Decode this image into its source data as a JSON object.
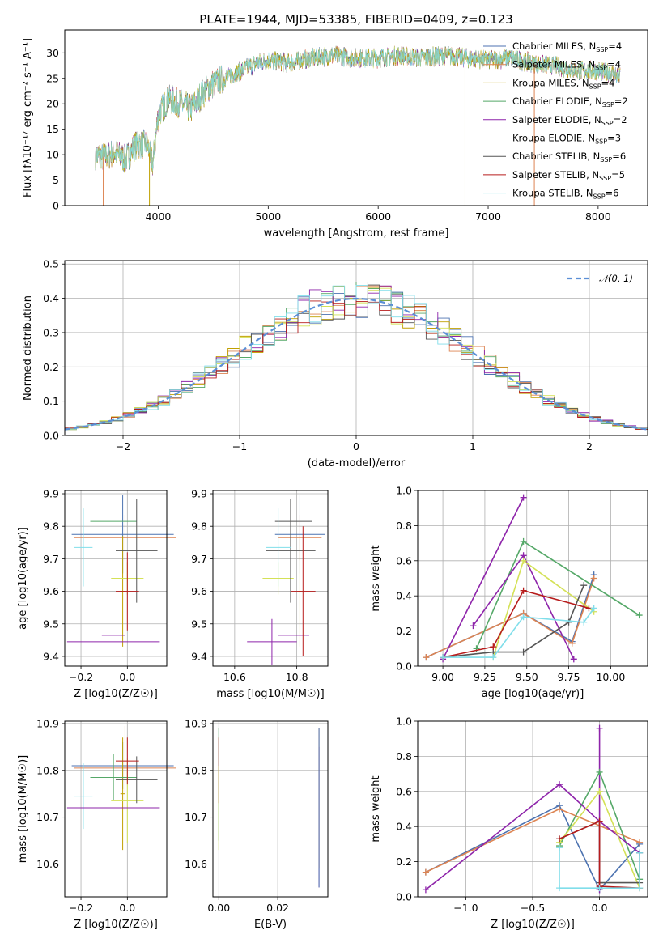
{
  "figure": {
    "title": "PLATE=1944, MJD=53385, FIBERID=0409, z=0.123"
  },
  "models": [
    {
      "name": "Chabrier MILES",
      "n": "4",
      "color": "#4c72b0"
    },
    {
      "name": "Salpeter MILES",
      "n": "4",
      "color": "#dd8452"
    },
    {
      "name": "Kroupa MILES",
      "n": "4",
      "color": "#c0a000"
    },
    {
      "name": "Chabrier ELODIE",
      "n": "2",
      "color": "#55a868"
    },
    {
      "name": "Salpeter ELODIE",
      "n": "2",
      "color": "#8e24aa"
    },
    {
      "name": "Kroupa ELODIE",
      "n": "3",
      "color": "#d4e157"
    },
    {
      "name": "Chabrier STELIB",
      "n": "6",
      "color": "#555555"
    },
    {
      "name": "Salpeter STELIB",
      "n": "5",
      "color": "#b71c1c"
    },
    {
      "name": "Kroupa STELIB",
      "n": "6",
      "color": "#80deea"
    }
  ],
  "chart_data": [
    {
      "id": "spectrum",
      "type": "line",
      "xlabel": "wavelength [Angstrom, rest frame]",
      "ylabel": "Flux [fλ10⁻¹⁷ erg cm⁻² s⁻¹ A⁻¹]",
      "xlim": [
        3150,
        8450
      ],
      "ylim": [
        0,
        34.5
      ],
      "xticks": [
        4000,
        5000,
        6000,
        7000,
        8000
      ],
      "yticks": [
        0,
        5,
        10,
        15,
        20,
        25,
        30
      ],
      "x": [
        3430,
        3500,
        3600,
        3700,
        3800,
        3900,
        3950,
        4000,
        4100,
        4200,
        4300,
        4400,
        4500,
        4600,
        4700,
        4800,
        4900,
        5000,
        5200,
        5400,
        5600,
        5800,
        6000,
        6200,
        6400,
        6600,
        6800,
        7000,
        7200,
        7400,
        7600,
        7800,
        8000,
        8200
      ],
      "y": [
        10,
        9.5,
        10.5,
        9,
        12,
        12,
        8,
        18,
        21,
        20,
        19,
        22,
        24,
        25,
        26,
        27,
        28,
        28.5,
        28,
        29,
        29.5,
        29,
        29,
        29.5,
        29,
        29.5,
        29,
        28.5,
        29,
        28,
        27.5,
        26.5,
        26.5,
        25.5
      ],
      "grid": false,
      "legend": "upper right"
    },
    {
      "id": "residuals",
      "type": "line",
      "xlabel": "(data-model)/error",
      "ylabel": "Normed distribution",
      "xlim": [
        -2.5,
        2.5
      ],
      "ylim": [
        0,
        0.51
      ],
      "xticks": [
        -2,
        -1,
        0,
        1,
        2
      ],
      "yticks": [
        0.0,
        0.1,
        0.2,
        0.3,
        0.4,
        0.5
      ],
      "normal_label": "𝒩(0, 1)",
      "grid": true,
      "legend": "upper right"
    },
    {
      "id": "age-vs-Z",
      "type": "scatter",
      "xlabel": "Z [log10(Z/Z☉)]",
      "ylabel": "age [log10(age/yr)]",
      "xlim": [
        -0.27,
        0.17
      ],
      "ylim": [
        9.37,
        9.91
      ],
      "xticks": [
        -0.2,
        0.0
      ],
      "yticks": [
        9.4,
        9.5,
        9.6,
        9.7,
        9.8,
        9.9
      ],
      "points": [
        {
          "x": -0.02,
          "y": 9.775,
          "xerr": 0.22,
          "yerr": 0.12
        },
        {
          "x": -0.01,
          "y": 9.765,
          "xerr": 0.22,
          "yerr": 0.07
        },
        {
          "x": -0.02,
          "y": 9.6,
          "xerr": 0.01,
          "yerr": 0.17
        },
        {
          "x": -0.06,
          "y": 9.815,
          "xerr": 0.1,
          "yerr": 0.0
        },
        {
          "x": -0.06,
          "y": 9.465,
          "xerr": 0.05,
          "yerr": 0.0
        },
        {
          "x": 0.0,
          "y": 9.64,
          "xerr": 0.07,
          "yerr": 0.05
        },
        {
          "x": 0.04,
          "y": 9.725,
          "xerr": 0.09,
          "yerr": 0.16
        },
        {
          "x": 0.0,
          "y": 9.6,
          "xerr": 0.05,
          "yerr": 0.12
        },
        {
          "x": -0.19,
          "y": 9.735,
          "xerr": 0.04,
          "yerr": 0.12
        },
        {
          "x": -0.06,
          "y": 9.445,
          "xerr": 0.2,
          "yerr": 0.0
        }
      ]
    },
    {
      "id": "age-vs-mass",
      "type": "scatter",
      "xlabel": "mass [log10(M/M☉)]",
      "ylabel": "",
      "xlim": [
        10.53,
        10.9
      ],
      "ylim": [
        9.37,
        9.91
      ],
      "xticks": [
        10.6,
        10.8
      ],
      "yticks": [
        9.4,
        9.5,
        9.6,
        9.7,
        9.8,
        9.9
      ],
      "points": [
        {
          "x": 10.81,
          "y": 9.775,
          "xerr": 0.08,
          "yerr": 0.12
        },
        {
          "x": 10.81,
          "y": 9.765,
          "xerr": 0.07,
          "yerr": 0.07
        },
        {
          "x": 10.81,
          "y": 9.6,
          "xerr": 0.005,
          "yerr": 0.17
        },
        {
          "x": 10.79,
          "y": 9.815,
          "xerr": 0.06,
          "yerr": 0.0
        },
        {
          "x": 10.79,
          "y": 9.465,
          "xerr": 0.05,
          "yerr": 0.0
        },
        {
          "x": 10.74,
          "y": 9.64,
          "xerr": 0.05,
          "yerr": 0.05
        },
        {
          "x": 10.78,
          "y": 9.725,
          "xerr": 0.08,
          "yerr": 0.16
        },
        {
          "x": 10.82,
          "y": 9.6,
          "xerr": 0.04,
          "yerr": 0.2
        },
        {
          "x": 10.74,
          "y": 9.735,
          "xerr": 0.04,
          "yerr": 0.12
        },
        {
          "x": 10.72,
          "y": 9.445,
          "xerr": 0.08,
          "yerr": 0.07
        }
      ]
    },
    {
      "id": "weight-vs-age",
      "type": "line",
      "xlabel": "age [log10(age/yr)]",
      "ylabel": "mass weight",
      "xlim": [
        8.85,
        10.22
      ],
      "ylim": [
        0,
        1.0
      ],
      "xticks": [
        9.0,
        9.25,
        9.5,
        9.75,
        10.0
      ],
      "yticks": [
        0.0,
        0.2,
        0.4,
        0.6,
        0.8,
        1.0
      ],
      "grid": true,
      "series": [
        {
          "x": [
            8.9,
            9.48,
            9.77,
            9.9
          ],
          "y": [
            0.05,
            0.3,
            0.14,
            0.52
          ]
        },
        {
          "x": [
            8.9,
            9.48,
            9.77,
            9.9
          ],
          "y": [
            0.05,
            0.3,
            0.13,
            0.5
          ]
        },
        {
          "x": [
            9.0,
            9.48
          ],
          "y": [
            0.04,
            0.96
          ]
        },
        {
          "x": [
            9.2,
            9.48,
            10.17
          ],
          "y": [
            0.1,
            0.71,
            0.29
          ]
        },
        {
          "x": [
            9.18,
            9.48,
            9.78
          ],
          "y": [
            0.23,
            0.63,
            0.04
          ]
        },
        {
          "x": [
            9.3,
            9.48,
            9.9
          ],
          "y": [
            0.05,
            0.6,
            0.31
          ]
        },
        {
          "x": [
            9.0,
            9.3,
            9.48,
            9.75,
            9.84
          ],
          "y": [
            0.05,
            0.08,
            0.08,
            0.25,
            0.46
          ]
        },
        {
          "x": [
            9.0,
            9.3,
            9.48,
            9.87
          ],
          "y": [
            0.05,
            0.11,
            0.43,
            0.33
          ]
        },
        {
          "x": [
            9.0,
            9.3,
            9.48,
            9.84,
            9.9
          ],
          "y": [
            0.05,
            0.05,
            0.28,
            0.25,
            0.33
          ]
        }
      ]
    },
    {
      "id": "mass-vs-Z",
      "type": "scatter",
      "xlabel": "Z [log10(Z/Z☉)]",
      "ylabel": "mass [log10(M/M☉)]",
      "xlim": [
        -0.27,
        0.17
      ],
      "ylim": [
        10.53,
        10.905
      ],
      "xticks": [
        -0.2,
        0.0
      ],
      "yticks": [
        10.6,
        10.7,
        10.8,
        10.9
      ],
      "points": [
        {
          "x": -0.02,
          "y": 10.81,
          "xerr": 0.22,
          "yerr": 0.05
        },
        {
          "x": -0.01,
          "y": 10.805,
          "xerr": 0.22,
          "yerr": 0.09
        },
        {
          "x": -0.02,
          "y": 10.75,
          "xerr": 0.01,
          "yerr": 0.12
        },
        {
          "x": -0.06,
          "y": 10.785,
          "xerr": 0.1,
          "yerr": 0.05
        },
        {
          "x": -0.06,
          "y": 10.79,
          "xerr": 0.05,
          "yerr": 0.0
        },
        {
          "x": 0.0,
          "y": 10.735,
          "xerr": 0.07,
          "yerr": 0.09
        },
        {
          "x": 0.04,
          "y": 10.78,
          "xerr": 0.09,
          "yerr": 0.05
        },
        {
          "x": 0.0,
          "y": 10.82,
          "xerr": 0.05,
          "yerr": 0.05
        },
        {
          "x": -0.19,
          "y": 10.745,
          "xerr": 0.04,
          "yerr": 0.07
        },
        {
          "x": -0.06,
          "y": 10.72,
          "xerr": 0.2,
          "yerr": 0.0
        }
      ]
    },
    {
      "id": "mass-vs-EBV",
      "type": "scatter",
      "xlabel": "E(B-V)",
      "ylabel": "",
      "xlim": [
        -0.002,
        0.037
      ],
      "ylim": [
        10.53,
        10.905
      ],
      "xticks": [
        0.0,
        0.02
      ],
      "yticks": [
        10.6,
        10.7,
        10.8,
        10.9
      ],
      "points": [
        {
          "x": 0.0,
          "y": 10.77,
          "xerr": 0.0,
          "yerr": 0.12
        },
        {
          "x": 0.0,
          "y": 10.8,
          "xerr": 0.0,
          "yerr": 0.07
        },
        {
          "x": 0.0,
          "y": 10.72,
          "xerr": 0.0,
          "yerr": 0.09
        },
        {
          "x": 0.034,
          "y": 10.7,
          "xerr": 0.0,
          "yerr": 0.15
        },
        {
          "x": 0.034,
          "y": 10.74,
          "xerr": 0.0,
          "yerr": 0.15
        },
        {
          "x": 0.034,
          "y": 10.72,
          "xerr": 0.0,
          "yerr": 0.17
        }
      ]
    },
    {
      "id": "weight-vs-Z",
      "type": "line",
      "xlabel": "Z [log10(Z/Z☉)]",
      "ylabel": "mass weight",
      "xlim": [
        -1.36,
        0.36
      ],
      "ylim": [
        0,
        1.0
      ],
      "xticks": [
        -1.0,
        -0.5,
        0.0
      ],
      "yticks": [
        0.0,
        0.2,
        0.4,
        0.6,
        0.8,
        1.0
      ],
      "grid": true,
      "series": [
        {
          "x": [
            -1.3,
            -0.3,
            0.0,
            0.3
          ],
          "y": [
            0.14,
            0.52,
            0.04,
            0.3
          ]
        },
        {
          "x": [
            -1.3,
            -0.3,
            0.3
          ],
          "y": [
            0.14,
            0.5,
            0.31
          ]
        },
        {
          "x": [
            0.0,
            0.0
          ],
          "y": [
            0.04,
            0.96
          ]
        },
        {
          "x": [
            -0.3,
            0.0,
            0.3
          ],
          "y": [
            0.29,
            0.71,
            0.1
          ]
        },
        {
          "x": [
            -1.3,
            -0.3,
            0.0,
            0.3
          ],
          "y": [
            0.04,
            0.64,
            0.43,
            0.25
          ]
        },
        {
          "x": [
            -0.3,
            0.0,
            0.3
          ],
          "y": [
            0.31,
            0.6,
            0.05
          ]
        },
        {
          "x": [
            -0.3,
            0.0,
            0.0,
            0.3,
            0.3
          ],
          "y": [
            0.33,
            0.43,
            0.08,
            0.08,
            0.25
          ]
        },
        {
          "x": [
            -0.3,
            0.0,
            0.0,
            0.3
          ],
          "y": [
            0.33,
            0.43,
            0.06,
            0.05
          ]
        },
        {
          "x": [
            -0.3,
            -0.3,
            0.0,
            0.3,
            0.3
          ],
          "y": [
            0.28,
            0.05,
            0.05,
            0.05,
            0.25
          ]
        }
      ]
    }
  ]
}
